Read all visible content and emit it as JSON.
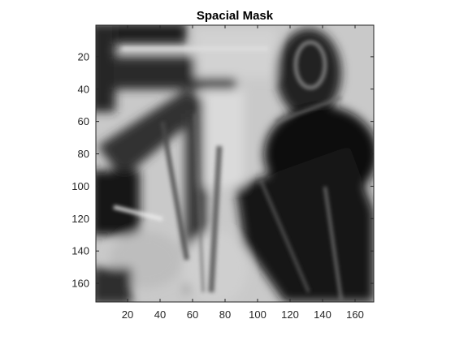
{
  "chart_data": {
    "type": "heatmap",
    "title": "Spacial Mask",
    "xlabel": "",
    "ylabel": "",
    "colormap": "gray",
    "x_range": [
      0.5,
      171.5
    ],
    "y_range": [
      0.5,
      171.5
    ],
    "y_direction": "reversed",
    "x_ticks": [
      20,
      40,
      60,
      80,
      100,
      120,
      140,
      160
    ],
    "y_ticks": [
      20,
      40,
      60,
      80,
      100,
      120,
      140,
      160
    ],
    "grid": false,
    "box": true
  }
}
